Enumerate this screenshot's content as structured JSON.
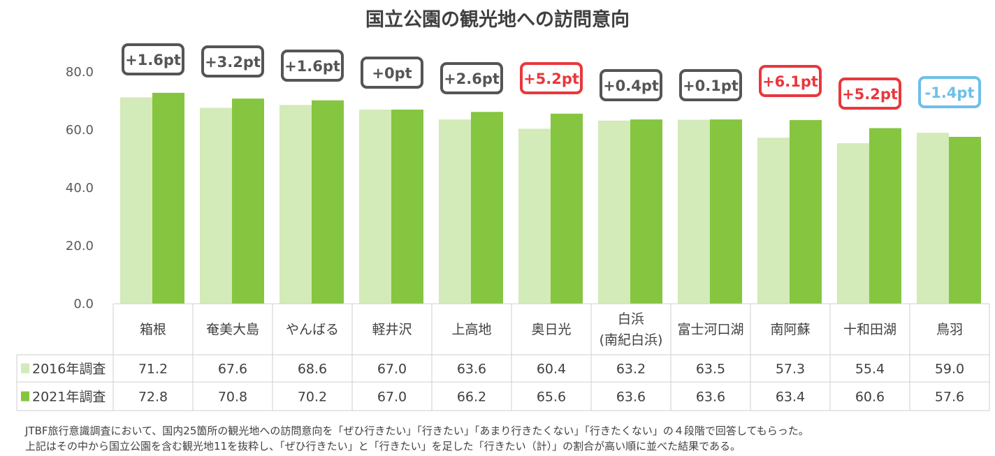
{
  "chart_data": {
    "type": "bar",
    "title": "国立公園の観光地への訪問意向",
    "categories": [
      [
        "箱根"
      ],
      [
        "奄美大島"
      ],
      [
        "やんばる"
      ],
      [
        "軽井沢"
      ],
      [
        "上高地"
      ],
      [
        "奥日光"
      ],
      [
        "白浜",
        "(南紀白浜)"
      ],
      [
        "富士河口湖"
      ],
      [
        "南阿蘇"
      ],
      [
        "十和田湖"
      ],
      [
        "鳥羽"
      ]
    ],
    "series": [
      {
        "name": "2016年調査",
        "color": "#d3eab9",
        "values": [
          71.2,
          67.6,
          68.6,
          67.0,
          63.6,
          60.4,
          63.2,
          63.5,
          57.3,
          55.4,
          59.0
        ],
        "labels": [
          "71.2",
          "67.6",
          "68.6",
          "67.0",
          "63.6",
          "60.4",
          "63.2",
          "63.5",
          "57.3",
          "55.4",
          "59.0"
        ]
      },
      {
        "name": "2021年調査",
        "color": "#86c540",
        "values": [
          72.8,
          70.8,
          70.2,
          67.0,
          66.2,
          65.6,
          63.6,
          63.6,
          63.4,
          60.6,
          57.6
        ],
        "labels": [
          "72.8",
          "70.8",
          "70.2",
          "67.0",
          "66.2",
          "65.6",
          "63.6",
          "63.6",
          "63.4",
          "60.6",
          "57.6"
        ]
      }
    ],
    "differences": [
      "+1.6pt",
      "+3.2pt",
      "+1.6pt",
      "+0pt",
      "+2.6pt",
      "+5.2pt",
      "+0.4pt",
      "+0.1pt",
      "+6.1pt",
      "+5.2pt",
      "-1.4pt"
    ],
    "difference_colors": [
      "#555555",
      "#555555",
      "#555555",
      "#555555",
      "#555555",
      "#e8383d",
      "#555555",
      "#555555",
      "#e8383d",
      "#e8383d",
      "#6ebfe9"
    ],
    "yticks": [
      "0.0",
      "20.0",
      "40.0",
      "60.0",
      "80.0"
    ],
    "ylim": [
      0,
      90
    ],
    "grid": false,
    "data_table": true
  },
  "notes": [
    "JTBF旅行意識調査において、国内25箇所の観光地への訪問意向を「ぜひ行きたい」「行きたい」「あまり行きたくない」「行きたくない」の４段階で回答してもらった。",
    "上記はその中から国立公園を含む観光地11を抜粋し、「ぜひ行きたい」と「行きたい」を足した「行きたい（計）」の割合が高い順に並べた結果である。"
  ]
}
